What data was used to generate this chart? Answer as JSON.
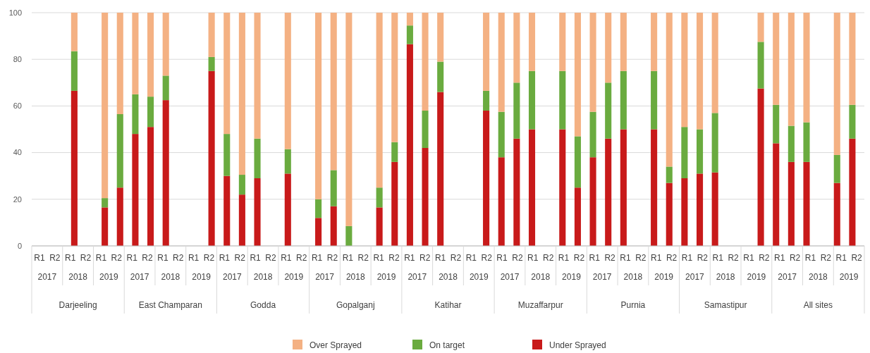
{
  "chart_data": {
    "type": "bar",
    "stacked": true,
    "categories": [
      "R1",
      "R2",
      "R1",
      "R2",
      "R1",
      "R2",
      "R1",
      "R2",
      "R1",
      "R2",
      "R1",
      "R2",
      "R1",
      "R2",
      "R1",
      "R2",
      "R1",
      "R2",
      "R1",
      "R2",
      "R1",
      "R2",
      "R1",
      "R2",
      "R1",
      "R2",
      "R1",
      "R2",
      "R1",
      "R2",
      "R1",
      "R2",
      "R1",
      "R2",
      "R1",
      "R2",
      "R1",
      "R2",
      "R1",
      "R2",
      "R1",
      "R2",
      "R1",
      "R2",
      "R1",
      "R2",
      "R1",
      "R2",
      "R1",
      "R2",
      "R1",
      "R2",
      "R1",
      "R2"
    ],
    "annotations": [
      "2017",
      "2018",
      "2019",
      "2017",
      "2018",
      "2019",
      "2017",
      "2018",
      "2019",
      "2017",
      "2018",
      "2019",
      "2017",
      "2018",
      "2019",
      "2017",
      "2018",
      "2019",
      "2017",
      "2018",
      "2019",
      "2017",
      "2018",
      "2019",
      "2017",
      "2018",
      "2019",
      "Darjeeling",
      "East Champaran",
      "Godda",
      "Gopalganj",
      "Katihar",
      "Muzaffarpur",
      "Purnia",
      "Samastipur",
      "All sites"
    ],
    "series": [
      {
        "name": "Under Sprayed",
        "color": "#c81a1a",
        "values": [
          null,
          null,
          66.5,
          null,
          16.5,
          25,
          48,
          51,
          62.5,
          null,
          null,
          75,
          30,
          22,
          29,
          null,
          31,
          null,
          12,
          17,
          0,
          null,
          16.5,
          36,
          86.5,
          42,
          66,
          null,
          null,
          58,
          38,
          46,
          50,
          null,
          50,
          25,
          38,
          46,
          50,
          null,
          50,
          27,
          29,
          31,
          31.5,
          null,
          null,
          67.5,
          44,
          36,
          36,
          null,
          27,
          46
        ]
      },
      {
        "name": "On target",
        "color": "#6aab3f",
        "values": [
          null,
          null,
          17,
          null,
          4,
          31.5,
          17,
          13,
          10.5,
          null,
          null,
          6,
          18,
          8.5,
          17,
          null,
          10.5,
          null,
          8,
          15.5,
          8.5,
          null,
          8.5,
          8.5,
          8,
          16,
          13,
          null,
          null,
          8.5,
          19.5,
          24,
          25,
          null,
          25,
          22,
          19.5,
          24,
          25,
          null,
          25,
          7,
          22,
          19,
          25.5,
          null,
          null,
          20,
          16.5,
          15.5,
          17,
          null,
          12,
          14.5
        ]
      },
      {
        "name": "Over Sprayed",
        "color": "#f4b183",
        "values": [
          null,
          null,
          16.5,
          null,
          79.5,
          43.5,
          35,
          36,
          27,
          null,
          null,
          19,
          52,
          69.5,
          54,
          null,
          58.5,
          null,
          80,
          67.5,
          91.5,
          null,
          75,
          55.5,
          5.5,
          42,
          21,
          null,
          null,
          33.5,
          42.5,
          30,
          25,
          null,
          25,
          53,
          42.5,
          30,
          25,
          null,
          25,
          66,
          49,
          50,
          43,
          null,
          null,
          12.5,
          39.5,
          48.5,
          47,
          null,
          61,
          39.5
        ]
      }
    ],
    "ylim": [
      0,
      100
    ],
    "yticks": [
      0,
      20,
      40,
      60,
      80,
      100
    ],
    "grid": "y",
    "legend": "bottom"
  }
}
